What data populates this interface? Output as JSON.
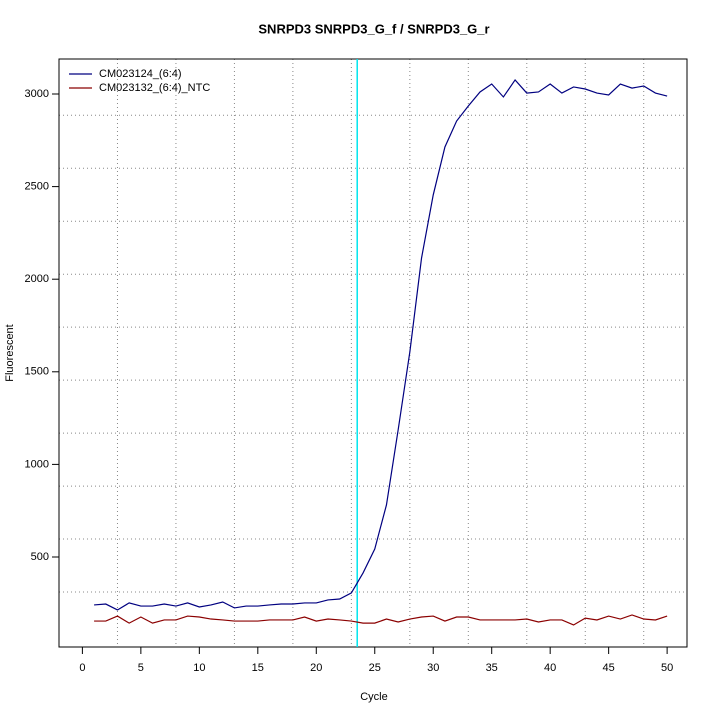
{
  "chart_data": {
    "type": "line",
    "title": "SNRPD3  SNRPD3_G_f / SNRPD3_G_r",
    "x_label": "Cycle",
    "y_label": "Fluorescent",
    "x": [
      1,
      2,
      3,
      4,
      5,
      6,
      7,
      8,
      9,
      10,
      11,
      12,
      13,
      14,
      15,
      16,
      17,
      18,
      19,
      20,
      21,
      22,
      23,
      24,
      25,
      26,
      27,
      28,
      29,
      30,
      31,
      32,
      33,
      34,
      35,
      36,
      37,
      38,
      39,
      40,
      41,
      42,
      43,
      44,
      45,
      46,
      47,
      48,
      49,
      50
    ],
    "series": [
      {
        "name": "CM023124_(6:4)",
        "color": "#000080",
        "values": [
          241,
          246,
          214,
          252,
          235,
          235,
          246,
          235,
          252,
          230,
          241,
          257,
          225,
          235,
          235,
          241,
          246,
          246,
          252,
          252,
          268,
          273,
          306,
          414,
          543,
          781,
          1186,
          1607,
          2114,
          2455,
          2714,
          2854,
          2935,
          3011,
          3054,
          2984,
          3076,
          3005,
          3011,
          3054,
          3005,
          3038,
          3027,
          3005,
          2995,
          3054,
          3032,
          3043,
          3005,
          2989
        ]
      },
      {
        "name": "CM023132_(6:4)_NTC",
        "color": "#8b0000",
        "values": [
          154,
          154,
          181,
          143,
          176,
          143,
          160,
          160,
          181,
          176,
          165,
          160,
          154,
          154,
          154,
          160,
          160,
          160,
          176,
          154,
          165,
          160,
          154,
          143,
          143,
          165,
          149,
          165,
          176,
          181,
          154,
          176,
          176,
          160,
          160,
          160,
          160,
          165,
          149,
          160,
          160,
          133,
          170,
          160,
          181,
          165,
          187,
          165,
          160,
          181
        ]
      }
    ],
    "xlim": [
      -2,
      51.7
    ],
    "ylim": [
      14,
      3189
    ],
    "xticks": [
      0,
      5,
      10,
      15,
      20,
      25,
      30,
      35,
      40,
      45,
      50
    ],
    "yticks": [
      500,
      1000,
      1500,
      2000,
      2500,
      3000
    ],
    "xgrid": [
      3,
      8,
      13,
      18,
      23,
      28,
      33,
      38,
      43,
      48
    ],
    "ygrid": [
      311,
      597,
      883,
      1169,
      1455,
      1741,
      2027,
      2313,
      2599,
      2885
    ],
    "threshold_x": 23.5,
    "threshold_color": "#00e5ee",
    "legend": "top-left"
  }
}
